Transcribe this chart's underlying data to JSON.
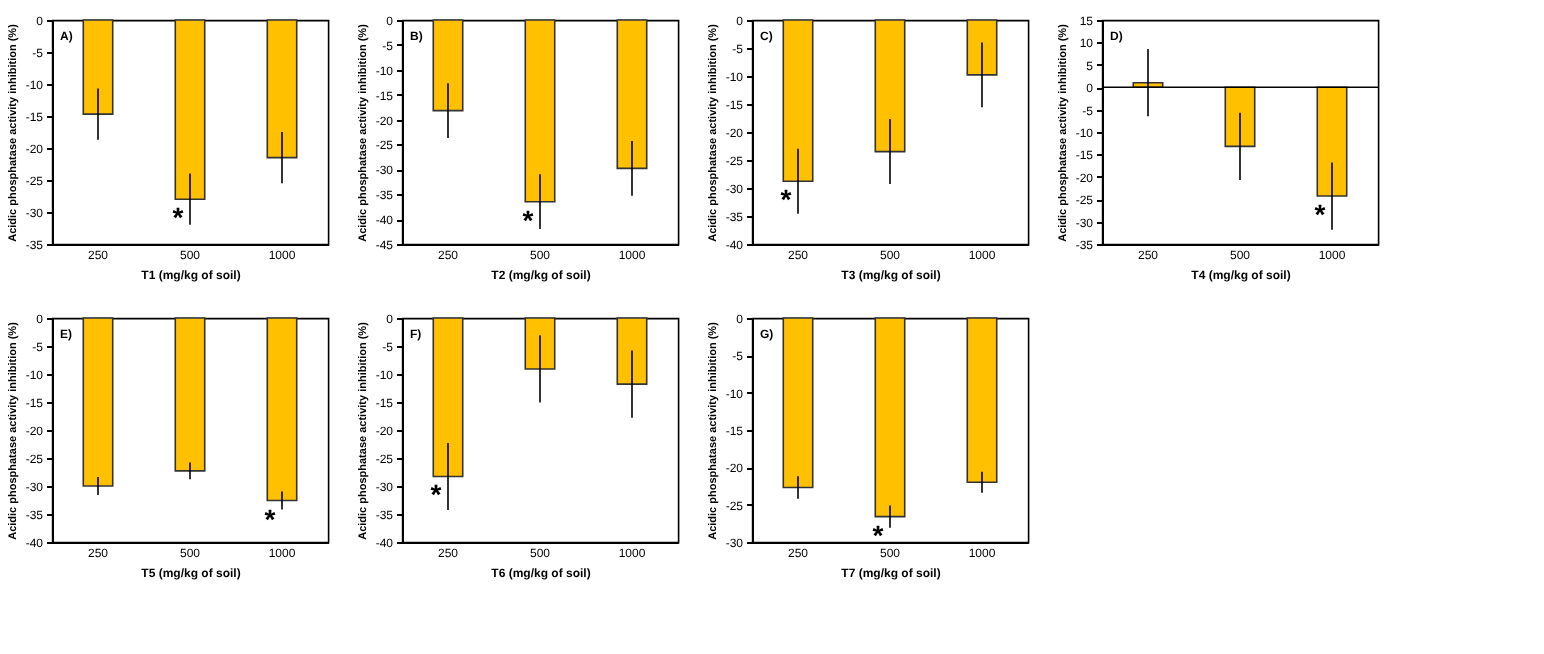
{
  "chart_data": [
    {
      "type": "bar",
      "categories": [
        "250",
        "500",
        "1000"
      ],
      "values": [
        -14.7,
        -28,
        -21.5
      ],
      "errors": [
        4,
        4,
        4
      ],
      "color": "#ffc000",
      "xlabel": "T1 (mg/kg of soil)",
      "ylabel": "Acidic phosphatase activity inhibition (%)",
      "ylim": [
        -35,
        0
      ],
      "yticks": [
        0,
        -5,
        -10,
        -15,
        -20,
        -25,
        -30,
        -35
      ],
      "annotations": [
        "A)",
        {
          "text": "*",
          "x": "500",
          "y": -28
        }
      ],
      "grid": false,
      "legend": false
    },
    {
      "type": "bar",
      "categories": [
        "250",
        "500",
        "1000"
      ],
      "values": [
        -18.2,
        -36.5,
        -29.8
      ],
      "errors": [
        5.5,
        5.5,
        5.5
      ],
      "color": "#ffc000",
      "xlabel": "T2 (mg/kg of soil)",
      "ylabel": "Acidic phosphatase activity inhibition (%)",
      "ylim": [
        -45,
        0
      ],
      "yticks": [
        0,
        -5,
        -10,
        -15,
        -20,
        -25,
        -30,
        -35,
        -40,
        -45
      ],
      "annotations": [
        "B)",
        {
          "text": "*",
          "x": "500",
          "y": -36.5
        }
      ],
      "grid": false,
      "legend": false
    },
    {
      "type": "bar",
      "categories": [
        "250",
        "500",
        "1000"
      ],
      "values": [
        -28.8,
        -23.5,
        -9.8
      ],
      "errors": [
        5.8,
        5.8,
        5.8
      ],
      "color": "#ffc000",
      "xlabel": "T3 (mg/kg of soil)",
      "ylabel": "Acidic phosphatase activity inhibition (%)",
      "ylim": [
        -40,
        0
      ],
      "yticks": [
        0,
        -5,
        -10,
        -15,
        -20,
        -25,
        -30,
        -35,
        -40
      ],
      "annotations": [
        "C)",
        {
          "text": "*",
          "x": "250",
          "y": -28.8
        }
      ],
      "grid": false,
      "legend": false
    },
    {
      "type": "bar",
      "categories": [
        "250",
        "500",
        "1000"
      ],
      "values": [
        1,
        -13.2,
        -24.3
      ],
      "errors": [
        7.5,
        7.5,
        7.5
      ],
      "color": "#ffc000",
      "xlabel": "T4 (mg/kg of soil)",
      "ylabel": "Acidic phosphatase activity inhibition (%)",
      "ylim": [
        -35,
        15
      ],
      "yticks": [
        15,
        10,
        5,
        0,
        -5,
        -10,
        -15,
        -20,
        -25,
        -30,
        -35
      ],
      "ref_lines": [
        {
          "axis": "y",
          "value": 0
        }
      ],
      "annotations": [
        "D)",
        {
          "text": "*",
          "x": "1000",
          "y": -24.3
        }
      ],
      "grid": false,
      "legend": false
    },
    {
      "type": "bar",
      "categories": [
        "250",
        "500",
        "1000"
      ],
      "values": [
        -30,
        -27.3,
        -32.6
      ],
      "errors": [
        1.6,
        1.5,
        1.6
      ],
      "color": "#ffc000",
      "xlabel": "T5 (mg/kg of soil)",
      "ylabel": "Acidic phosphatase activity inhibition (%)",
      "ylim": [
        -40,
        0
      ],
      "yticks": [
        0,
        -5,
        -10,
        -15,
        -20,
        -25,
        -30,
        -35,
        -40
      ],
      "annotations": [
        "E)",
        {
          "text": "*",
          "x": "1000",
          "y": -32.6
        }
      ],
      "grid": false,
      "legend": false
    },
    {
      "type": "bar",
      "categories": [
        "250",
        "500",
        "1000"
      ],
      "values": [
        -28.3,
        -9.1,
        -11.8
      ],
      "errors": [
        6,
        6,
        6
      ],
      "color": "#ffc000",
      "xlabel": "T6 (mg/kg of soil)",
      "ylabel": "Acidic phosphatase activity inhibition (%)",
      "ylim": [
        -40,
        0
      ],
      "yticks": [
        0,
        -5,
        -10,
        -15,
        -20,
        -25,
        -30,
        -35,
        -40
      ],
      "annotations": [
        "F)",
        {
          "text": "*",
          "x": "250",
          "y": -28.3
        }
      ],
      "grid": false,
      "legend": false
    },
    {
      "type": "bar",
      "categories": [
        "250",
        "500",
        "1000"
      ],
      "values": [
        -22.7,
        -26.6,
        -22
      ],
      "errors": [
        1.5,
        1.5,
        1.4
      ],
      "color": "#ffc000",
      "xlabel": "T7 (mg/kg of soil)",
      "ylabel": "Acidic phosphatase activity inhibition (%)",
      "ylim": [
        -30,
        0
      ],
      "yticks": [
        0,
        -5,
        -10,
        -15,
        -20,
        -25,
        -30
      ],
      "annotations": [
        "G)",
        {
          "text": "*",
          "x": "500",
          "y": -26.6
        }
      ],
      "grid": false,
      "legend": false
    }
  ]
}
